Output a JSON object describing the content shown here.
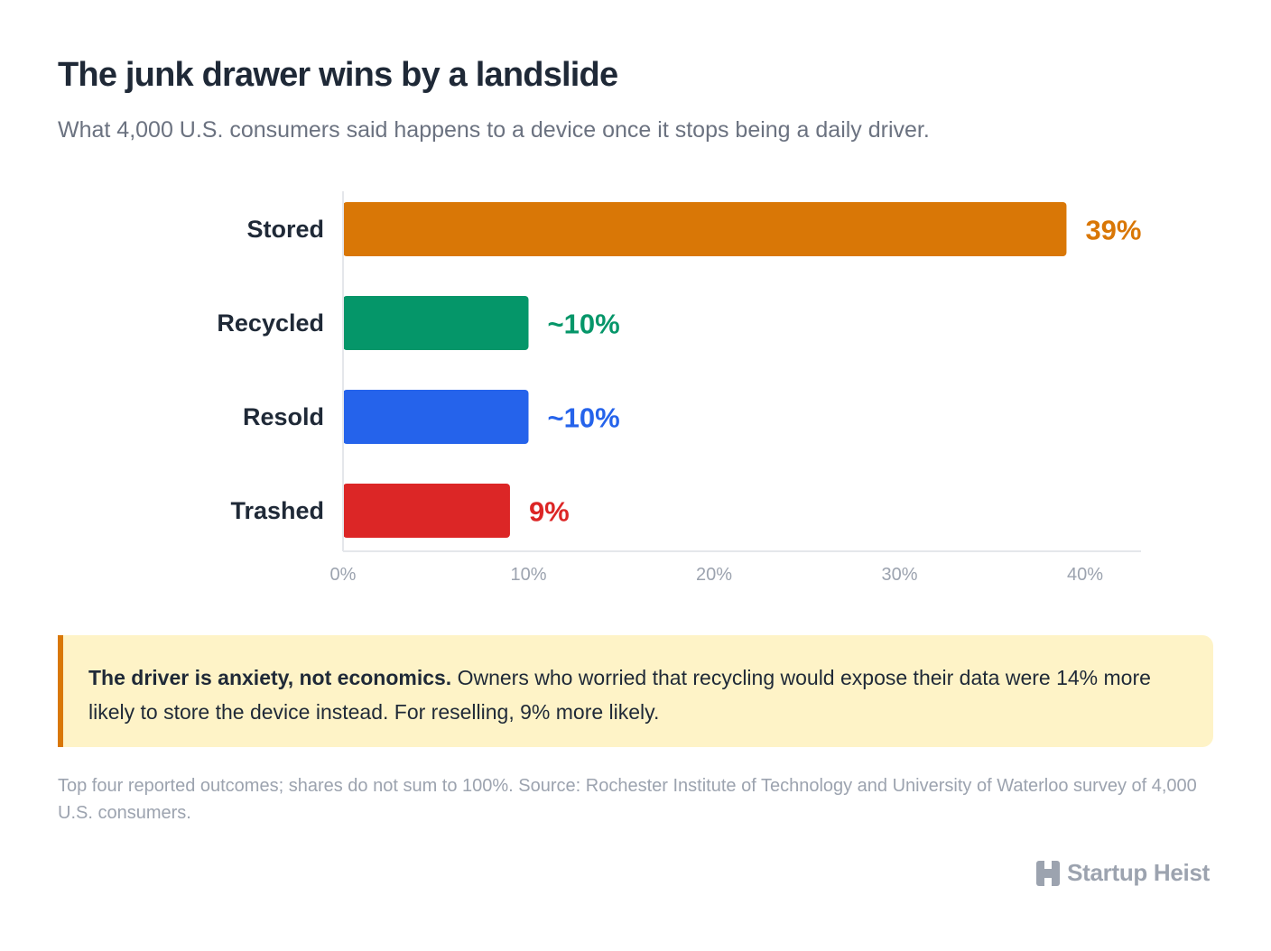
{
  "title": "The junk drawer wins by a landslide",
  "subtitle": "What 4,000 U.S. consumers said happens to a device once it stops being a daily driver.",
  "chart_data": {
    "type": "bar",
    "orientation": "horizontal",
    "categories": [
      "Stored",
      "Recycled",
      "Resold",
      "Trashed"
    ],
    "values": [
      39,
      10,
      10,
      9
    ],
    "value_labels": [
      "39%",
      "~10%",
      "~10%",
      "9%"
    ],
    "colors": [
      "#d97706",
      "#059669",
      "#2563eb",
      "#dc2626"
    ],
    "xlim": [
      0,
      43
    ],
    "xticks": [
      0,
      10,
      20,
      30,
      40
    ],
    "xtick_labels": [
      "0%",
      "10%",
      "20%",
      "30%",
      "40%"
    ],
    "grid": false
  },
  "callout": {
    "lead": "The driver is anxiety, not economics.",
    "body": "Owners who worried that recycling would expose their data were 14% more likely to store the device instead. For reselling, 9% more likely."
  },
  "footnote": "Top four reported outcomes; shares do not sum to 100%. Source: Rochester Institute of Technology and University of Waterloo survey of 4,000 U.S. consumers.",
  "brand": {
    "name": "Startup Heist",
    "icon": "h-logo-icon"
  }
}
